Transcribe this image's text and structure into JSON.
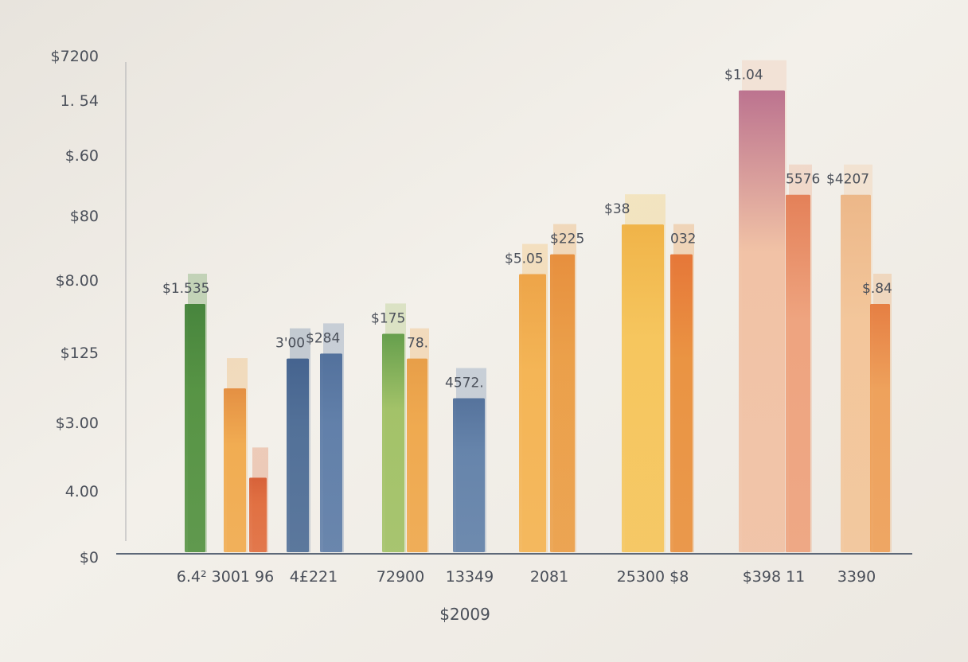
{
  "chart_data": {
    "type": "bar",
    "style": "watercolor",
    "xlabel": "$2009",
    "ylabel": "",
    "ylim": [
      0,
      1
    ],
    "grid": false,
    "legend": "none",
    "y_tick_labels": [
      "$0",
      "4.00",
      "$3.00",
      "$125",
      "$8.00",
      "$80",
      "$.60",
      "1. 54",
      "$7200"
    ],
    "groups": [
      {
        "category": "6.4² 3001 96",
        "bars": [
          {
            "label": "$1.535",
            "value": 0.5,
            "color": "#4f8f3c",
            "top_color": "#3e7f34"
          },
          {
            "label": "",
            "value": 0.33,
            "color": "#f1a94a",
            "top_color": "#e38a3a"
          },
          {
            "label": "",
            "value": 0.15,
            "color": "#e06a3a",
            "top_color": "#d65a30"
          }
        ]
      },
      {
        "category": "4£221",
        "bars": [
          {
            "label": "3'00",
            "value": 0.39,
            "color": "#4a6a94",
            "top_color": "#3c5c8a"
          },
          {
            "label": "$284",
            "value": 0.4,
            "color": "#5a7aa6",
            "top_color": "#4a6a98"
          }
        ]
      },
      {
        "category": "72900",
        "bars": [
          {
            "label": "$175",
            "value": 0.44,
            "color": "#9fc062",
            "top_color": "#5d9a44"
          },
          {
            "label": "78.",
            "value": 0.39,
            "color": "#efa648",
            "top_color": "#e79a40"
          }
        ]
      },
      {
        "category": "13349",
        "bars": [
          {
            "label": "4572.",
            "value": 0.31,
            "color": "#5f7fa8",
            "top_color": "#4d6c98"
          }
        ]
      },
      {
        "category": "2081",
        "bars": [
          {
            "label": "$5.05",
            "value": 0.56,
            "color": "#f4b24e",
            "top_color": "#eda040"
          },
          {
            "label": "$225",
            "value": 0.6,
            "color": "#eb9c42",
            "top_color": "#e68a35"
          }
        ]
      },
      {
        "category": "25300 $8",
        "bars": [
          {
            "label": "$38",
            "value": 0.66,
            "color": "#f6c457",
            "top_color": "#f0b040"
          },
          {
            "label": "032",
            "value": 0.6,
            "color": "#ea8f3a",
            "top_color": "#e5702f"
          }
        ]
      },
      {
        "category": "$398 11",
        "bars": [
          {
            "label": "$1.04",
            "value": 0.93,
            "color": "#f1c0a2",
            "top_color": "#b86b8a"
          },
          {
            "label": "5576",
            "value": 0.72,
            "color": "#eea07a",
            "top_color": "#e37a50"
          }
        ]
      },
      {
        "category": "3390",
        "bars": [
          {
            "label": "$4207",
            "value": 0.72,
            "color": "#f3c497",
            "top_color": "#ecb483"
          },
          {
            "label": "$.84",
            "value": 0.5,
            "color": "#ee9e55",
            "top_color": "#e5783a"
          }
        ]
      }
    ]
  }
}
